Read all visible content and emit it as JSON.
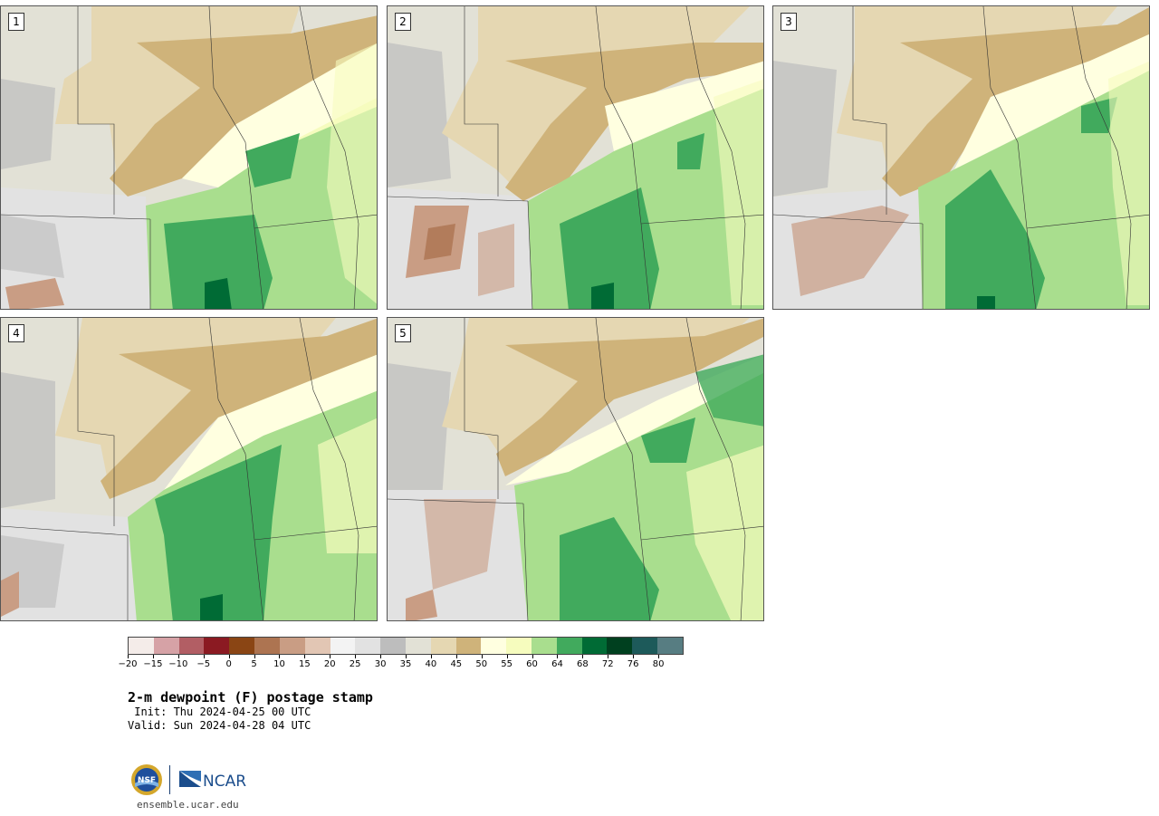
{
  "panels": [
    {
      "label": "1"
    },
    {
      "label": "2"
    },
    {
      "label": "3"
    },
    {
      "label": "4"
    },
    {
      "label": "5"
    }
  ],
  "colorbar": {
    "colors": [
      "#f4ece9",
      "#d6a2a6",
      "#b25e64",
      "#8b1a22",
      "#8a4514",
      "#ad7451",
      "#c99d84",
      "#e2c6b4",
      "#f3f3f3",
      "#e2e2e2",
      "#bdbdbd",
      "#e2e1d6",
      "#e5d7b2",
      "#cfb37a",
      "#ffffe0",
      "#f6fcbe",
      "#a9de8e",
      "#41aa5d",
      "#006b35",
      "#00401f",
      "#1d5a5a",
      "#577d82"
    ],
    "tick_labels": [
      "−20",
      "−15",
      "−10",
      "−5",
      "0",
      "5",
      "10",
      "15",
      "20",
      "25",
      "30",
      "35",
      "40",
      "45",
      "50",
      "55",
      "60",
      "64",
      "68",
      "72",
      "76",
      "80"
    ]
  },
  "map_colors": {
    "background": "#e2e1d6",
    "tan_light": "#e5d7b2",
    "tan_dark": "#cfb37a",
    "gray": "#bdbdbd",
    "gray_light": "#e2e2e2",
    "cream": "#ffffe0",
    "yellow": "#f6fcbe",
    "green_light": "#a9de8e",
    "green_mid": "#41aa5d",
    "green_dark": "#006b35",
    "brown": "#c99d84",
    "border": "#555555"
  },
  "title": "2-m dewpoint (F) postage stamp",
  "init": " Init: Thu 2024-04-25 00 UTC",
  "valid": "Valid: Sun 2024-04-28 04 UTC",
  "footer": {
    "nsf_logo_text": "NSF",
    "ncar_logo_text": "NCAR",
    "url": "ensemble.ucar.edu"
  }
}
